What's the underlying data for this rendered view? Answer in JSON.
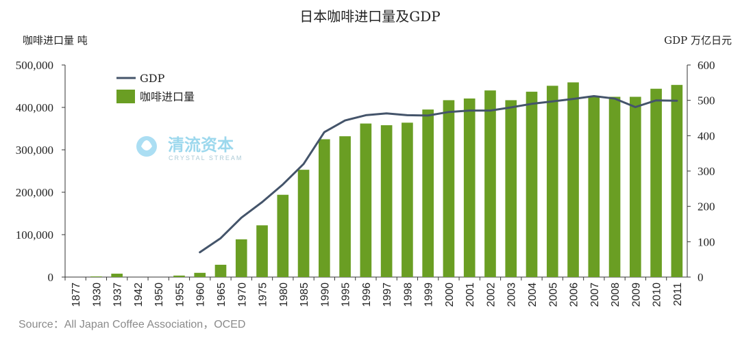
{
  "chart_data": {
    "type": "bar",
    "title": "日本咖啡进口量及GDP",
    "ylabel_left": "咖啡进口量 吨",
    "ylabel_right": "GDP 万亿日元",
    "categories": [
      "1877",
      "1930",
      "1937",
      "1942",
      "1950",
      "1955",
      "1960",
      "1965",
      "1970",
      "1975",
      "1980",
      "1985",
      "1990",
      "1995",
      "1996",
      "1997",
      "1998",
      "1999",
      "2000",
      "2001",
      "2002",
      "2003",
      "2004",
      "2005",
      "2006",
      "2007",
      "2008",
      "2009",
      "2010",
      "2011"
    ],
    "ylim_left": [
      0,
      500000
    ],
    "ylim_right": [
      0,
      600
    ],
    "left_ticks": [
      "0",
      "100,000",
      "200,000",
      "300,000",
      "400,000",
      "500,000"
    ],
    "right_ticks": [
      "0",
      "100",
      "200",
      "300",
      "400",
      "500",
      "600"
    ],
    "series": [
      {
        "name": "咖啡进口量",
        "type": "bar",
        "axis": "left",
        "color": "#6a9e23",
        "values": [
          0,
          1500,
          8000,
          0,
          0,
          3500,
          10000,
          29000,
          89000,
          122000,
          194000,
          253000,
          325000,
          332000,
          362000,
          358000,
          364000,
          395000,
          417000,
          421000,
          440000,
          417000,
          437000,
          451000,
          459000,
          427000,
          425000,
          425000,
          444000,
          453000
        ]
      },
      {
        "name": "GDP",
        "type": "line",
        "axis": "right",
        "color": "#44546a",
        "values": [
          null,
          null,
          null,
          null,
          null,
          null,
          70,
          110,
          168,
          212,
          262,
          320,
          410,
          443,
          458,
          463,
          458,
          457,
          467,
          471,
          471,
          480,
          490,
          497,
          504,
          512,
          505,
          481,
          500,
          499
        ]
      }
    ],
    "legend": [
      {
        "label": "GDP",
        "kind": "line",
        "color": "#44546a"
      },
      {
        "label": "咖啡进口量",
        "kind": "bar",
        "color": "#6a9e23"
      }
    ],
    "legend_position": "top-left",
    "source": "Source：All Japan Coffee Association，OCED"
  },
  "watermark": {
    "name_cn": "清流资本",
    "name_en": "CRYSTAL  STREAM"
  }
}
